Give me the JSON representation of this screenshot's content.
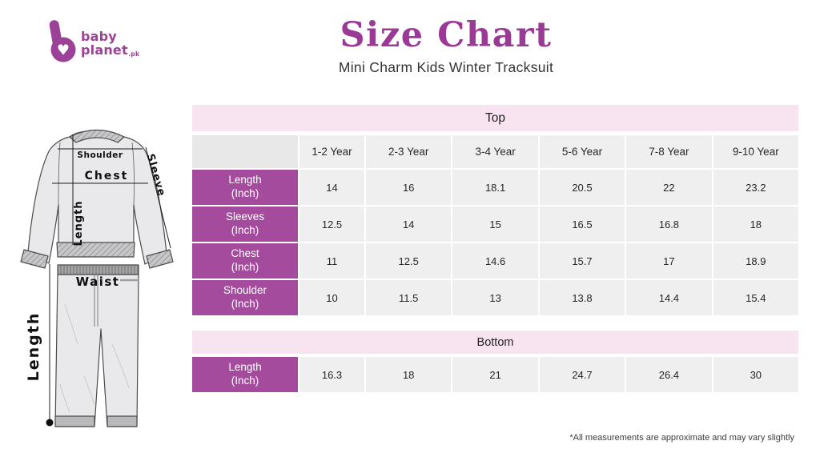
{
  "logo": {
    "line1": "baby",
    "line2": "planet",
    "suffix": ".pk",
    "heart_icon": "♥"
  },
  "header": {
    "title": "Size Chart",
    "subtitle": "Mini Charm Kids Winter Tracksuit"
  },
  "diagram": {
    "labels": {
      "shoulder": "Shoulder",
      "chest": "Chest",
      "sleeve": "Sleeve",
      "length_top": "Length",
      "waist": "Waist",
      "length_bottom": "Length"
    }
  },
  "top_table": {
    "section_label": "Top",
    "columns": [
      "1-2 Year",
      "2-3 Year",
      "3-4 Year",
      "5-6 Year",
      "7-8 Year",
      "9-10 Year"
    ],
    "rows": [
      {
        "label": "Length",
        "unit": "(Inch)",
        "values": [
          "14",
          "16",
          "18.1",
          "20.5",
          "22",
          "23.2"
        ]
      },
      {
        "label": "Sleeves",
        "unit": "(Inch)",
        "values": [
          "12.5",
          "14",
          "15",
          "16.5",
          "16.8",
          "18"
        ]
      },
      {
        "label": "Chest",
        "unit": "(Inch)",
        "values": [
          "11",
          "12.5",
          "14.6",
          "15.7",
          "17",
          "18.9"
        ]
      },
      {
        "label": "Shoulder",
        "unit": "(Inch)",
        "values": [
          "10",
          "11.5",
          "13",
          "13.8",
          "14.4",
          "15.4"
        ]
      }
    ]
  },
  "bottom_table": {
    "section_label": "Bottom",
    "rows": [
      {
        "label": "Length",
        "unit": "(Inch)",
        "values": [
          "16.3",
          "18",
          "21",
          "24.7",
          "26.4",
          "30"
        ]
      }
    ]
  },
  "footnote": "*All measurements are approximate and may vary slightly",
  "colors": {
    "accent_purple": "#a44b9d",
    "title_purple": "#9a3a96",
    "band_pink": "#f8e4f1",
    "cell_gray": "#f0eff0",
    "corner_gray": "#e9e8e9",
    "logo_purple": "#9c4198"
  },
  "chart_data": [
    {
      "type": "table",
      "title": "Top",
      "columns": [
        "",
        "1-2 Year",
        "2-3 Year",
        "3-4 Year",
        "5-6 Year",
        "7-8 Year",
        "9-10 Year"
      ],
      "rows": [
        [
          "Length (Inch)",
          14,
          16,
          18.1,
          20.5,
          22,
          23.2
        ],
        [
          "Sleeves (Inch)",
          12.5,
          14,
          15,
          16.5,
          16.8,
          18
        ],
        [
          "Chest (Inch)",
          11,
          12.5,
          14.6,
          15.7,
          17,
          18.9
        ],
        [
          "Shoulder (Inch)",
          10,
          11.5,
          13,
          13.8,
          14.4,
          15.4
        ]
      ]
    },
    {
      "type": "table",
      "title": "Bottom",
      "rows": [
        [
          "Length (Inch)",
          16.3,
          18,
          21,
          24.7,
          26.4,
          30
        ]
      ]
    }
  ]
}
